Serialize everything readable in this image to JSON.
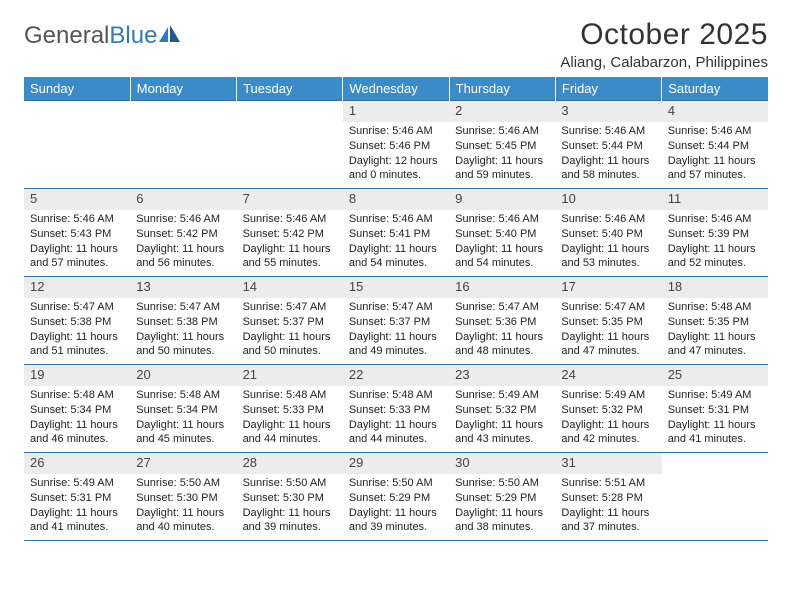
{
  "logo": {
    "text1": "General",
    "text2": "Blue"
  },
  "title": "October 2025",
  "location": "Aliang, Calabarzon, Philippines",
  "colors": {
    "header_bg": "#3b8bc9",
    "header_text": "#ffffff",
    "border": "#2f6fa8",
    "daynum_bg": "#ececec",
    "logo_gray": "#555555",
    "logo_blue": "#2f7bbf"
  },
  "dayHeaders": [
    "Sunday",
    "Monday",
    "Tuesday",
    "Wednesday",
    "Thursday",
    "Friday",
    "Saturday"
  ],
  "weeks": [
    [
      null,
      null,
      null,
      {
        "n": "1",
        "sr": "5:46 AM",
        "ss": "5:46 PM",
        "dl": "12 hours and 0 minutes."
      },
      {
        "n": "2",
        "sr": "5:46 AM",
        "ss": "5:45 PM",
        "dl": "11 hours and 59 minutes."
      },
      {
        "n": "3",
        "sr": "5:46 AM",
        "ss": "5:44 PM",
        "dl": "11 hours and 58 minutes."
      },
      {
        "n": "4",
        "sr": "5:46 AM",
        "ss": "5:44 PM",
        "dl": "11 hours and 57 minutes."
      }
    ],
    [
      {
        "n": "5",
        "sr": "5:46 AM",
        "ss": "5:43 PM",
        "dl": "11 hours and 57 minutes."
      },
      {
        "n": "6",
        "sr": "5:46 AM",
        "ss": "5:42 PM",
        "dl": "11 hours and 56 minutes."
      },
      {
        "n": "7",
        "sr": "5:46 AM",
        "ss": "5:42 PM",
        "dl": "11 hours and 55 minutes."
      },
      {
        "n": "8",
        "sr": "5:46 AM",
        "ss": "5:41 PM",
        "dl": "11 hours and 54 minutes."
      },
      {
        "n": "9",
        "sr": "5:46 AM",
        "ss": "5:40 PM",
        "dl": "11 hours and 54 minutes."
      },
      {
        "n": "10",
        "sr": "5:46 AM",
        "ss": "5:40 PM",
        "dl": "11 hours and 53 minutes."
      },
      {
        "n": "11",
        "sr": "5:46 AM",
        "ss": "5:39 PM",
        "dl": "11 hours and 52 minutes."
      }
    ],
    [
      {
        "n": "12",
        "sr": "5:47 AM",
        "ss": "5:38 PM",
        "dl": "11 hours and 51 minutes."
      },
      {
        "n": "13",
        "sr": "5:47 AM",
        "ss": "5:38 PM",
        "dl": "11 hours and 50 minutes."
      },
      {
        "n": "14",
        "sr": "5:47 AM",
        "ss": "5:37 PM",
        "dl": "11 hours and 50 minutes."
      },
      {
        "n": "15",
        "sr": "5:47 AM",
        "ss": "5:37 PM",
        "dl": "11 hours and 49 minutes."
      },
      {
        "n": "16",
        "sr": "5:47 AM",
        "ss": "5:36 PM",
        "dl": "11 hours and 48 minutes."
      },
      {
        "n": "17",
        "sr": "5:47 AM",
        "ss": "5:35 PM",
        "dl": "11 hours and 47 minutes."
      },
      {
        "n": "18",
        "sr": "5:48 AM",
        "ss": "5:35 PM",
        "dl": "11 hours and 47 minutes."
      }
    ],
    [
      {
        "n": "19",
        "sr": "5:48 AM",
        "ss": "5:34 PM",
        "dl": "11 hours and 46 minutes."
      },
      {
        "n": "20",
        "sr": "5:48 AM",
        "ss": "5:34 PM",
        "dl": "11 hours and 45 minutes."
      },
      {
        "n": "21",
        "sr": "5:48 AM",
        "ss": "5:33 PM",
        "dl": "11 hours and 44 minutes."
      },
      {
        "n": "22",
        "sr": "5:48 AM",
        "ss": "5:33 PM",
        "dl": "11 hours and 44 minutes."
      },
      {
        "n": "23",
        "sr": "5:49 AM",
        "ss": "5:32 PM",
        "dl": "11 hours and 43 minutes."
      },
      {
        "n": "24",
        "sr": "5:49 AM",
        "ss": "5:32 PM",
        "dl": "11 hours and 42 minutes."
      },
      {
        "n": "25",
        "sr": "5:49 AM",
        "ss": "5:31 PM",
        "dl": "11 hours and 41 minutes."
      }
    ],
    [
      {
        "n": "26",
        "sr": "5:49 AM",
        "ss": "5:31 PM",
        "dl": "11 hours and 41 minutes."
      },
      {
        "n": "27",
        "sr": "5:50 AM",
        "ss": "5:30 PM",
        "dl": "11 hours and 40 minutes."
      },
      {
        "n": "28",
        "sr": "5:50 AM",
        "ss": "5:30 PM",
        "dl": "11 hours and 39 minutes."
      },
      {
        "n": "29",
        "sr": "5:50 AM",
        "ss": "5:29 PM",
        "dl": "11 hours and 39 minutes."
      },
      {
        "n": "30",
        "sr": "5:50 AM",
        "ss": "5:29 PM",
        "dl": "11 hours and 38 minutes."
      },
      {
        "n": "31",
        "sr": "5:51 AM",
        "ss": "5:28 PM",
        "dl": "11 hours and 37 minutes."
      },
      null
    ]
  ],
  "labels": {
    "sunrise": "Sunrise:",
    "sunset": "Sunset:",
    "daylight": "Daylight:"
  }
}
